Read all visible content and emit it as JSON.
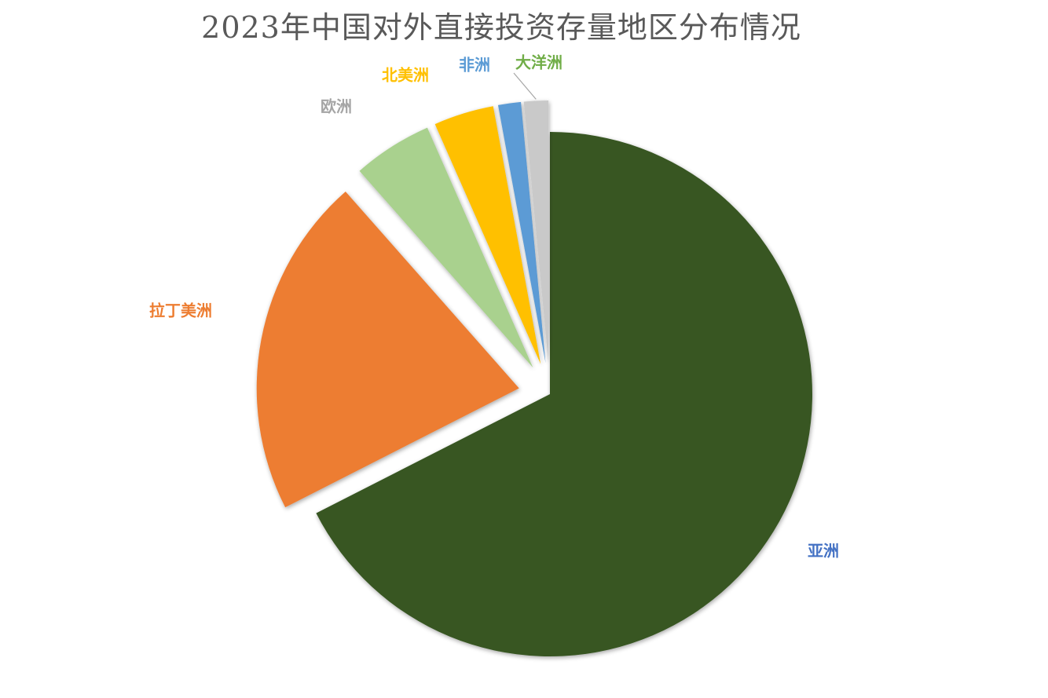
{
  "chart_data": {
    "type": "pie",
    "title": "2023年中国对外直接投资存量地区分布情况",
    "categories": [
      "亚洲",
      "拉丁美洲",
      "欧洲",
      "北美洲",
      "非洲",
      "大洋洲"
    ],
    "values": [
      67.5,
      21.0,
      4.9,
      3.7,
      1.4,
      1.5
    ],
    "unit": "%",
    "colors": [
      "#375623",
      "#ED7D31",
      "#A9D18E",
      "#FFC000",
      "#5B9BD5",
      "#C9C9C9"
    ],
    "label_colors": [
      "#4472C4",
      "#ED7D31",
      "#A5A5A5",
      "#FFC000",
      "#5B9BD5",
      "#70AD47"
    ],
    "exploded": [
      "拉丁美洲",
      "欧洲",
      "北美洲",
      "非洲",
      "大洋洲"
    ],
    "legend": "none",
    "data_labels": "category-name"
  }
}
